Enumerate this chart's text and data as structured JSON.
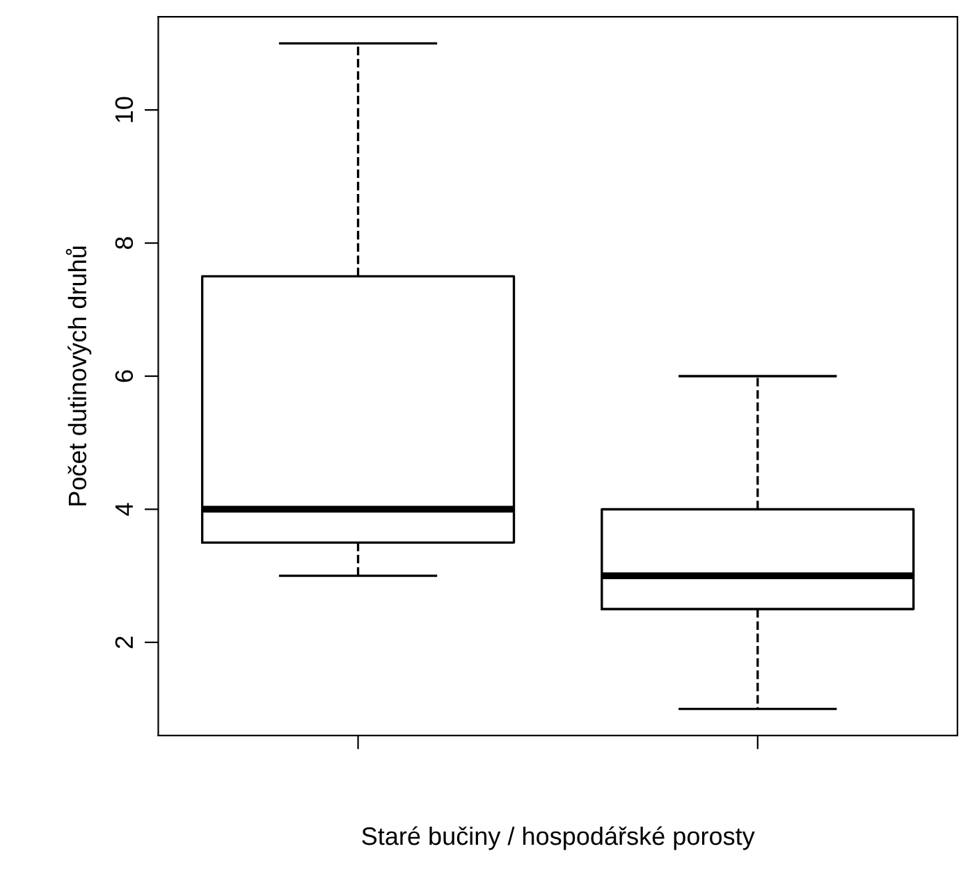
{
  "chart_data": {
    "type": "box",
    "xlabel": "Staré bučiny / hospodářské porosty",
    "ylabel": "Počet dutinových druhů",
    "categories": [
      null,
      null
    ],
    "boxes": [
      {
        "low": 3,
        "q1": 3.5,
        "median": 4,
        "q3": 7.5,
        "high": 11
      },
      {
        "low": 1,
        "q1": 2.5,
        "median": 3,
        "q3": 4,
        "high": 6
      }
    ],
    "color": "#000000",
    "ylim": [
      0.6,
      11.4
    ],
    "yticks": [
      2,
      4,
      6,
      8,
      10
    ],
    "grid": false,
    "tick_labels": "y",
    "line_style": "dashed"
  }
}
